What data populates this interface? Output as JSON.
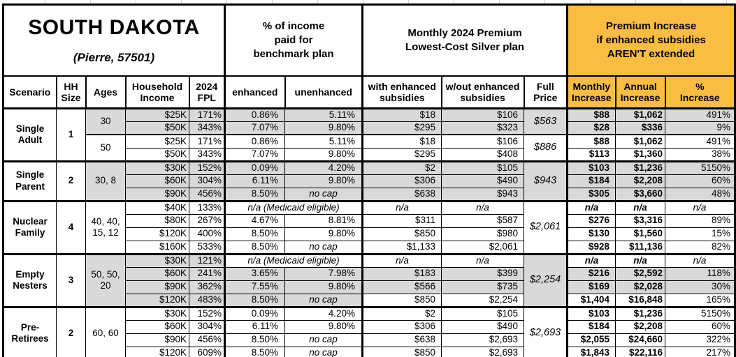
{
  "header": {
    "state": "SOUTH DAKOTA",
    "location": "(Pierre, 57501)",
    "benchmark_section": "% of income\npaid for\nbenchmark plan",
    "premium_section": "Monthly 2024 Premium\nLowest-Cost Silver plan",
    "increase_section": "Premium Increase\nif enhanced subsidies\nAREN'T extended"
  },
  "columns": [
    "Scenario",
    "HH\nSize",
    "Ages",
    "Household\nIncome",
    "2024\nFPL",
    "enhanced",
    "unenhanced",
    "with enhanced\nsubsidies",
    "w/out enhanced\nsubsidies",
    "Full\nPrice",
    "Monthly\nIncrease",
    "Annual\nIncrease",
    "%\nIncrease"
  ],
  "colors": {
    "accent": "#FABD43",
    "shade": "#D9D9D9"
  },
  "groups": [
    {
      "scenario": "Single Adult",
      "hh_size": "1",
      "blocks": [
        {
          "ages": "30",
          "shaded": true,
          "full_price": "$563",
          "rows": [
            {
              "income": "$25K",
              "fpl": "171%",
              "enhanced": "0.86%",
              "unenhanced": "5.11%",
              "with_sub": "$18",
              "without_sub": "$106",
              "monthly": "$88",
              "annual": "$1,062",
              "pct": "491%"
            },
            {
              "income": "$50K",
              "fpl": "343%",
              "enhanced": "7.07%",
              "unenhanced": "9.80%",
              "with_sub": "$295",
              "without_sub": "$323",
              "monthly": "$28",
              "annual": "$336",
              "pct": "9%"
            }
          ]
        },
        {
          "ages": "50",
          "shaded": false,
          "full_price": "$886",
          "rows": [
            {
              "income": "$25K",
              "fpl": "171%",
              "enhanced": "0.86%",
              "unenhanced": "5.11%",
              "with_sub": "$18",
              "without_sub": "$106",
              "monthly": "$88",
              "annual": "$1,062",
              "pct": "491%"
            },
            {
              "income": "$50K",
              "fpl": "343%",
              "enhanced": "7.07%",
              "unenhanced": "9.80%",
              "with_sub": "$295",
              "without_sub": "$408",
              "monthly": "$113",
              "annual": "$1,360",
              "pct": "38%"
            }
          ]
        }
      ]
    },
    {
      "scenario": "Single Parent",
      "hh_size": "2",
      "blocks": [
        {
          "ages": "30, 8",
          "shaded": true,
          "full_price": "$943",
          "rows": [
            {
              "income": "$30K",
              "fpl": "152%",
              "enhanced": "0.09%",
              "unenhanced": "4.20%",
              "with_sub": "$2",
              "without_sub": "$105",
              "monthly": "$103",
              "annual": "$1,236",
              "pct": "5150%"
            },
            {
              "income": "$60K",
              "fpl": "304%",
              "enhanced": "6.11%",
              "unenhanced": "9.80%",
              "with_sub": "$306",
              "without_sub": "$490",
              "monthly": "$184",
              "annual": "$2,208",
              "pct": "60%"
            },
            {
              "income": "$90K",
              "fpl": "456%",
              "enhanced": "8.50%",
              "unenhanced": "no cap",
              "with_sub": "$638",
              "without_sub": "$943",
              "monthly": "$305",
              "annual": "$3,660",
              "pct": "48%"
            }
          ]
        }
      ]
    },
    {
      "scenario": "Nuclear Family",
      "hh_size": "4",
      "blocks": [
        {
          "ages": "40, 40, 15, 12",
          "shaded": false,
          "full_price": "$2,061",
          "rows": [
            {
              "income": "$40K",
              "fpl": "133%",
              "medicaid": "n/a (Medicaid eligible)",
              "with_sub": "n/a",
              "without_sub": "n/a",
              "monthly": "n/a",
              "annual": "n/a",
              "pct": "n/a"
            },
            {
              "income": "$80K",
              "fpl": "267%",
              "enhanced": "4.67%",
              "unenhanced": "8.81%",
              "with_sub": "$311",
              "without_sub": "$587",
              "monthly": "$276",
              "annual": "$3,316",
              "pct": "89%"
            },
            {
              "income": "$120K",
              "fpl": "400%",
              "enhanced": "8.50%",
              "unenhanced": "9.80%",
              "with_sub": "$850",
              "without_sub": "$980",
              "monthly": "$130",
              "annual": "$1,560",
              "pct": "15%"
            },
            {
              "income": "$160K",
              "fpl": "533%",
              "enhanced": "8.50%",
              "unenhanced": "no cap",
              "with_sub": "$1,133",
              "without_sub": "$2,061",
              "monthly": "$928",
              "annual": "$11,136",
              "pct": "82%"
            }
          ]
        }
      ]
    },
    {
      "scenario": "Empty Nesters",
      "hh_size": "3",
      "blocks": [
        {
          "ages": "50, 50, 20",
          "shaded": true,
          "full_price": "$2,254",
          "rows": [
            {
              "income": "$30K",
              "fpl": "121%",
              "medicaid": "n/a (Medicaid eligible)",
              "with_sub": "n/a",
              "without_sub": "n/a",
              "monthly": "n/a",
              "annual": "n/a",
              "pct": "n/a",
              "right_white": true
            },
            {
              "income": "$60K",
              "fpl": "241%",
              "enhanced": "3.65%",
              "unenhanced": "7.98%",
              "with_sub": "$183",
              "without_sub": "$399",
              "monthly": "$216",
              "annual": "$2,592",
              "pct": "118%"
            },
            {
              "income": "$90K",
              "fpl": "362%",
              "enhanced": "7.55%",
              "unenhanced": "9.80%",
              "with_sub": "$566",
              "without_sub": "$735",
              "monthly": "$169",
              "annual": "$2,028",
              "pct": "30%"
            },
            {
              "income": "$120K",
              "fpl": "483%",
              "enhanced": "8.50%",
              "unenhanced": "no cap",
              "with_sub": "$850",
              "without_sub": "$2,254",
              "monthly": "$1,404",
              "annual": "$16,848",
              "pct": "165%",
              "right_white": true
            }
          ]
        }
      ]
    },
    {
      "scenario": "Pre-Retirees",
      "hh_size": "2",
      "blocks": [
        {
          "ages": "60, 60",
          "shaded": false,
          "full_price": "$2,693",
          "rows": [
            {
              "income": "$30K",
              "fpl": "152%",
              "enhanced": "0.09%",
              "unenhanced": "4.20%",
              "with_sub": "$2",
              "without_sub": "$105",
              "monthly": "$103",
              "annual": "$1,236",
              "pct": "5150%"
            },
            {
              "income": "$60K",
              "fpl": "304%",
              "enhanced": "6.11%",
              "unenhanced": "9.80%",
              "with_sub": "$306",
              "without_sub": "$490",
              "monthly": "$184",
              "annual": "$2,208",
              "pct": "60%"
            },
            {
              "income": "$90K",
              "fpl": "456%",
              "enhanced": "8.50%",
              "unenhanced": "no cap",
              "with_sub": "$638",
              "without_sub": "$2,693",
              "monthly": "$2,055",
              "annual": "$24,660",
              "pct": "322%"
            },
            {
              "income": "$120K",
              "fpl": "609%",
              "enhanced": "8.50%",
              "unenhanced": "no cap",
              "with_sub": "$850",
              "without_sub": "$2,693",
              "monthly": "$1,843",
              "annual": "$22,116",
              "pct": "217%"
            }
          ]
        }
      ]
    }
  ]
}
